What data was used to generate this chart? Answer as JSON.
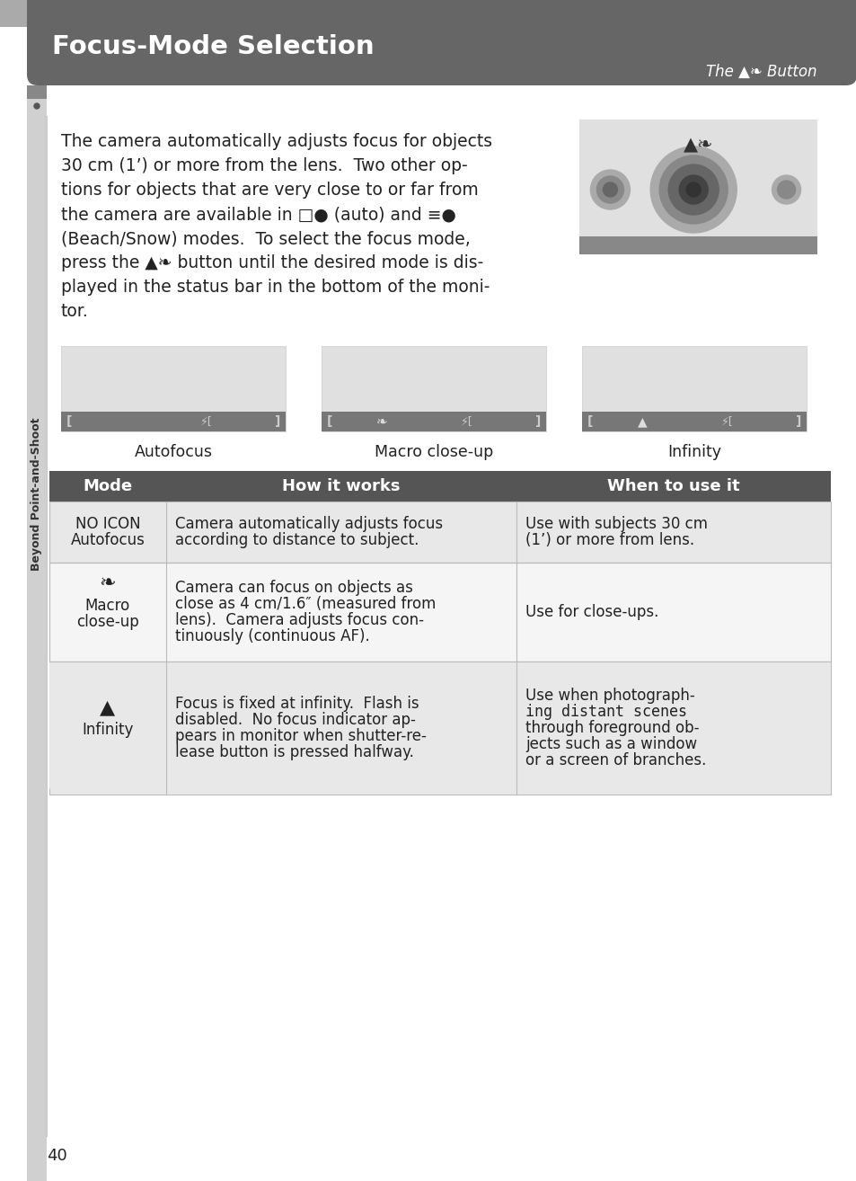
{
  "title": "Focus-Mode Selection",
  "subtitle_italic": "The ",
  "subtitle_icon": "▲❧",
  "subtitle_end": " Button",
  "title_bg": "#666666",
  "top_bar_bg": "#aaaaaa",
  "page_bg": "#ffffff",
  "sidebar_light": "#d8d8d8",
  "sidebar_dark": "#555555",
  "sidebar_text": "Beyond Point-and-Shoot",
  "body_lines": [
    "The camera automatically adjusts focus for objects",
    "30 cm (1’) or more from the lens.  Two other op-",
    "tions for objects that are very close to or far from",
    "the camera are available in □● (auto) and ≡●",
    "(Beach/Snow) modes.  To select the focus mode,",
    "press the ▲❧ button until the desired mode is dis-",
    "played in the status bar in the bottom of the moni-",
    "tor."
  ],
  "focus_labels": [
    "Autofocus",
    "Macro close-up",
    "Infinity"
  ],
  "table_header_bg": "#555555",
  "table_header_color": "#ffffff",
  "table_alt_bg": "#e8e8e8",
  "table_white_bg": "#f5f5f5",
  "table_border": "#bbbbbb",
  "col_headers": [
    "Mode",
    "How it works",
    "When to use it"
  ],
  "rows": [
    {
      "mode_lines": [
        "NO ICON",
        "Autofocus"
      ],
      "icon": "",
      "how_lines": [
        "Camera automatically adjusts focus",
        "according to distance to subject."
      ],
      "when_lines": [
        "Use with subjects 30 cm",
        "(1’) or more from lens."
      ],
      "when_mono": []
    },
    {
      "mode_lines": [
        "Macro",
        "close-up"
      ],
      "icon": "❧",
      "how_lines": [
        "Camera can focus on objects as",
        "close as 4 cm/1.6″ (measured from",
        "lens).  Camera adjusts focus con-",
        "tinuously (continuous AF)."
      ],
      "when_lines": [
        "Use for close-ups."
      ],
      "when_mono": []
    },
    {
      "mode_lines": [
        "Infinity"
      ],
      "icon": "▲",
      "how_lines": [
        "Focus is fixed at infinity.  Flash is",
        "disabled.  No focus indicator ap-",
        "pears in monitor when shutter-re-",
        "lease button is pressed halfway."
      ],
      "when_lines": [
        "Use when photograph-",
        "ing distant scenes",
        "through foreground ob-",
        "jects such as a window",
        "or a screen of branches."
      ],
      "when_mono": [
        1
      ]
    }
  ],
  "page_number": "40"
}
